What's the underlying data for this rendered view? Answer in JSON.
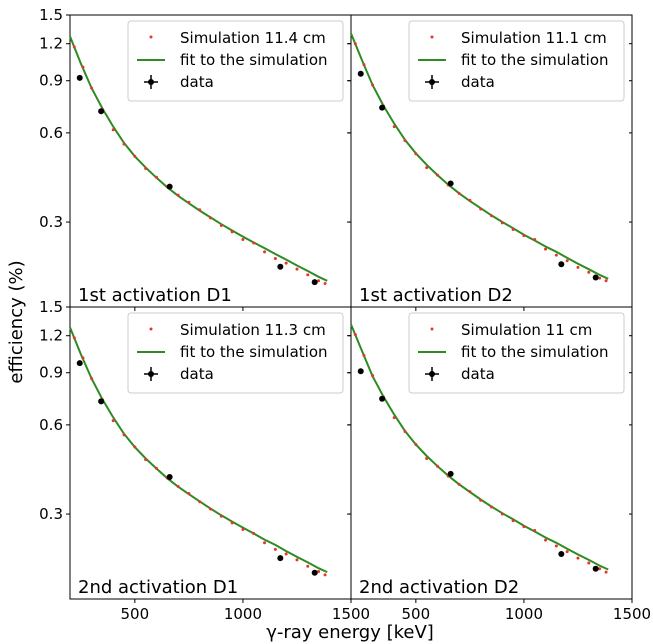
{
  "figure": {
    "ylabel": "efficiency (%)",
    "xlabel": "γ-ray energy [keV]"
  },
  "chart_data": [
    {
      "type": "scatter",
      "panel_label": "1st activation D1",
      "legend": {
        "placement": "top-right",
        "entries": [
          "Simulation 11.4 cm",
          "fit to the simulation",
          "data"
        ]
      },
      "xlim": [
        200,
        1500
      ],
      "ylim": [
        0.155,
        1.5
      ],
      "yscale": "log",
      "x_ticks": [
        500,
        1000,
        1500
      ],
      "y_ticks": [
        0.3,
        0.6,
        0.9,
        1.2,
        1.5
      ],
      "series": [
        {
          "name": "Simulation 11.4 cm",
          "color": "#e8352a",
          "x": [
            220,
            260,
            300,
            350,
            400,
            450,
            500,
            550,
            600,
            650,
            700,
            750,
            800,
            850,
            900,
            950,
            1000,
            1050,
            1100,
            1150,
            1200,
            1250,
            1300,
            1350,
            1380
          ],
          "y": [
            1.17,
            1.0,
            0.85,
            0.72,
            0.615,
            0.55,
            0.5,
            0.455,
            0.425,
            0.395,
            0.37,
            0.35,
            0.33,
            0.31,
            0.292,
            0.278,
            0.262,
            0.255,
            0.238,
            0.226,
            0.218,
            0.208,
            0.199,
            0.19,
            0.186
          ]
        },
        {
          "name": "fit to the simulation",
          "color": "#2e8b22",
          "x": [
            200,
            250,
            300,
            350,
            400,
            450,
            500,
            550,
            600,
            650,
            700,
            750,
            800,
            850,
            900,
            950,
            1000,
            1050,
            1100,
            1150,
            1200,
            1250,
            1300,
            1350,
            1390
          ],
          "y": [
            1.27,
            1.03,
            0.85,
            0.725,
            0.63,
            0.555,
            0.5,
            0.458,
            0.423,
            0.393,
            0.368,
            0.347,
            0.328,
            0.311,
            0.295,
            0.281,
            0.268,
            0.256,
            0.245,
            0.234,
            0.224,
            0.214,
            0.205,
            0.196,
            0.19
          ]
        },
        {
          "name": "data",
          "color": "#000000",
          "x": [
            245,
            344,
            661,
            1173,
            1332
          ],
          "y": [
            0.92,
            0.71,
            0.395,
            0.212,
            0.188
          ]
        }
      ]
    },
    {
      "type": "scatter",
      "panel_label": "1st activation D2",
      "legend": {
        "placement": "top-right",
        "entries": [
          "Simulation 11.1 cm",
          "fit to the simulation",
          "data"
        ]
      },
      "xlim": [
        200,
        1500
      ],
      "ylim": [
        0.155,
        1.5
      ],
      "yscale": "log",
      "x_ticks": [
        500,
        1000,
        1500
      ],
      "y_ticks": [
        0.3,
        0.6,
        0.9,
        1.2,
        1.5
      ],
      "series": [
        {
          "name": "Simulation 11.1 cm",
          "color": "#e8352a",
          "x": [
            220,
            260,
            300,
            350,
            400,
            450,
            500,
            550,
            600,
            650,
            700,
            750,
            800,
            850,
            900,
            950,
            1000,
            1050,
            1100,
            1150,
            1200,
            1250,
            1300,
            1350,
            1380
          ],
          "y": [
            1.2,
            1.02,
            0.87,
            0.74,
            0.63,
            0.565,
            0.51,
            0.458,
            0.432,
            0.4,
            0.375,
            0.355,
            0.332,
            0.315,
            0.298,
            0.283,
            0.27,
            0.262,
            0.243,
            0.232,
            0.222,
            0.211,
            0.203,
            0.194,
            0.19
          ]
        },
        {
          "name": "fit to the simulation",
          "color": "#2e8b22",
          "x": [
            200,
            250,
            300,
            350,
            400,
            450,
            500,
            550,
            600,
            650,
            700,
            750,
            800,
            850,
            900,
            950,
            1000,
            1050,
            1100,
            1150,
            1200,
            1250,
            1300,
            1350,
            1390
          ],
          "y": [
            1.3,
            1.06,
            0.87,
            0.742,
            0.645,
            0.568,
            0.512,
            0.468,
            0.432,
            0.401,
            0.375,
            0.353,
            0.334,
            0.316,
            0.3,
            0.286,
            0.272,
            0.26,
            0.248,
            0.238,
            0.227,
            0.217,
            0.208,
            0.199,
            0.193
          ]
        },
        {
          "name": "data",
          "color": "#000000",
          "x": [
            245,
            344,
            661,
            1173,
            1332
          ],
          "y": [
            0.95,
            0.73,
            0.405,
            0.216,
            0.195
          ]
        }
      ]
    },
    {
      "type": "scatter",
      "panel_label": "2nd activation D1",
      "legend": {
        "placement": "top-right",
        "entries": [
          "Simulation 11.3 cm",
          "fit to the simulation",
          "data"
        ]
      },
      "xlim": [
        200,
        1500
      ],
      "ylim": [
        0.155,
        1.5
      ],
      "yscale": "log",
      "x_ticks": [
        500,
        1000,
        1500
      ],
      "y_ticks": [
        0.3,
        0.6,
        0.9,
        1.2,
        1.5
      ],
      "series": [
        {
          "name": "Simulation 11.3 cm",
          "color": "#e8352a",
          "x": [
            220,
            260,
            300,
            350,
            400,
            450,
            500,
            550,
            600,
            650,
            700,
            750,
            800,
            850,
            900,
            950,
            1000,
            1050,
            1100,
            1150,
            1200,
            1250,
            1300,
            1350,
            1380
          ],
          "y": [
            1.18,
            1.01,
            0.86,
            0.73,
            0.62,
            0.555,
            0.505,
            0.458,
            0.428,
            0.397,
            0.372,
            0.352,
            0.33,
            0.312,
            0.295,
            0.28,
            0.266,
            0.258,
            0.24,
            0.228,
            0.22,
            0.21,
            0.2,
            0.192,
            0.187
          ]
        },
        {
          "name": "fit to the simulation",
          "color": "#2e8b22",
          "x": [
            200,
            250,
            300,
            350,
            400,
            450,
            500,
            550,
            600,
            650,
            700,
            750,
            800,
            850,
            900,
            950,
            1000,
            1050,
            1100,
            1150,
            1200,
            1250,
            1300,
            1350,
            1390
          ],
          "y": [
            1.28,
            1.04,
            0.86,
            0.732,
            0.636,
            0.56,
            0.505,
            0.462,
            0.427,
            0.396,
            0.371,
            0.35,
            0.331,
            0.313,
            0.297,
            0.283,
            0.27,
            0.258,
            0.246,
            0.236,
            0.225,
            0.215,
            0.206,
            0.197,
            0.191
          ]
        },
        {
          "name": "data",
          "color": "#000000",
          "x": [
            245,
            344,
            661,
            1173,
            1332
          ],
          "y": [
            0.97,
            0.72,
            0.4,
            0.213,
            0.19
          ]
        }
      ]
    },
    {
      "type": "scatter",
      "panel_label": "2nd activation D2",
      "legend": {
        "placement": "top-right",
        "entries": [
          "Simulation 11 cm",
          "fit to the simulation",
          "data"
        ]
      },
      "xlim": [
        200,
        1500
      ],
      "ylim": [
        0.155,
        1.5
      ],
      "yscale": "log",
      "x_ticks": [
        500,
        1000,
        1500
      ],
      "y_ticks": [
        0.3,
        0.6,
        0.9,
        1.2,
        1.5
      ],
      "series": [
        {
          "name": "Simulation 11 cm",
          "color": "#e8352a",
          "x": [
            220,
            260,
            300,
            350,
            400,
            450,
            500,
            550,
            600,
            650,
            700,
            750,
            800,
            850,
            900,
            950,
            1000,
            1050,
            1100,
            1150,
            1200,
            1250,
            1300,
            1350,
            1380
          ],
          "y": [
            1.21,
            1.03,
            0.88,
            0.745,
            0.635,
            0.57,
            0.515,
            0.462,
            0.435,
            0.403,
            0.378,
            0.357,
            0.334,
            0.317,
            0.3,
            0.285,
            0.272,
            0.264,
            0.245,
            0.234,
            0.224,
            0.213,
            0.205,
            0.196,
            0.191
          ]
        },
        {
          "name": "fit to the simulation",
          "color": "#2e8b22",
          "x": [
            200,
            250,
            300,
            350,
            400,
            450,
            500,
            550,
            600,
            650,
            700,
            750,
            800,
            850,
            900,
            950,
            1000,
            1050,
            1100,
            1150,
            1200,
            1250,
            1300,
            1350,
            1390
          ],
          "y": [
            1.31,
            1.07,
            0.875,
            0.748,
            0.65,
            0.572,
            0.515,
            0.471,
            0.435,
            0.404,
            0.378,
            0.356,
            0.336,
            0.318,
            0.302,
            0.288,
            0.274,
            0.262,
            0.25,
            0.24,
            0.229,
            0.219,
            0.21,
            0.201,
            0.195
          ]
        },
        {
          "name": "data",
          "color": "#000000",
          "x": [
            245,
            344,
            661,
            1173,
            1332
          ],
          "y": [
            0.91,
            0.735,
            0.41,
            0.22,
            0.196
          ]
        }
      ]
    }
  ]
}
